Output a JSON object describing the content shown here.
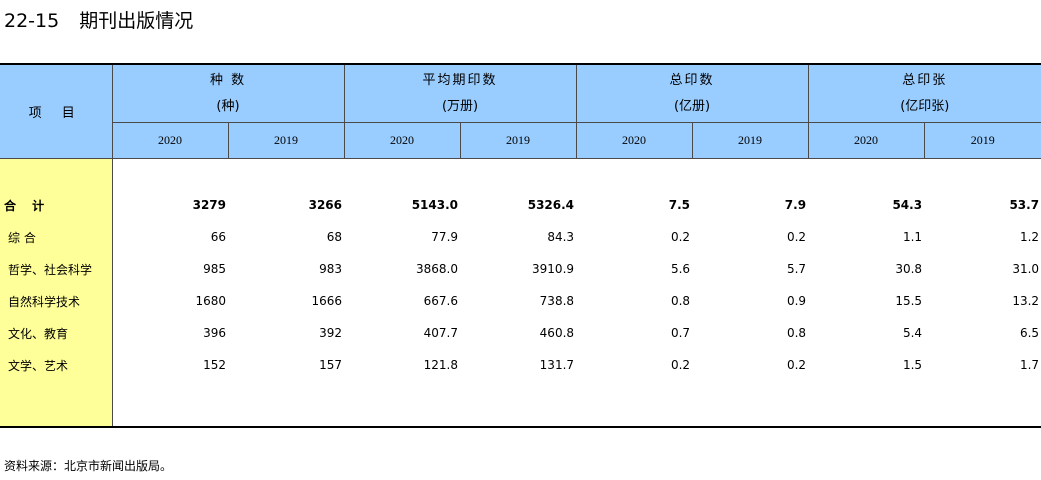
{
  "title": {
    "number": "22-15",
    "text": "期刊出版情况"
  },
  "table": {
    "item_header": "项 目",
    "groups": [
      {
        "name": "种 数",
        "unit": "(种)"
      },
      {
        "name": "平均期印数",
        "unit": "(万册)"
      },
      {
        "name": "总印数",
        "unit": "(亿册)"
      },
      {
        "name": "总印张",
        "unit": "(亿印张)"
      }
    ],
    "years": [
      "2020",
      "2019",
      "2020",
      "2019",
      "2020",
      "2019",
      "2020",
      "2019"
    ],
    "rows": [
      {
        "label": "合 计",
        "values": [
          "3279",
          "3266",
          "5143.0",
          "5326.4",
          "7.5",
          "7.9",
          "54.3",
          "53.7"
        ]
      },
      {
        "label": "综 合",
        "values": [
          "66",
          "68",
          "77.9",
          "84.3",
          "0.2",
          "0.2",
          "1.1",
          "1.2"
        ]
      },
      {
        "label": "哲学、社会科学",
        "values": [
          "985",
          "983",
          "3868.0",
          "3910.9",
          "5.6",
          "5.7",
          "30.8",
          "31.0"
        ]
      },
      {
        "label": "自然科学技术",
        "values": [
          "1680",
          "1666",
          "667.6",
          "738.8",
          "0.8",
          "0.9",
          "15.5",
          "13.2"
        ]
      },
      {
        "label": "文化、教育",
        "values": [
          "396",
          "392",
          "407.7",
          "460.8",
          "0.7",
          "0.8",
          "5.4",
          "6.5"
        ]
      },
      {
        "label": "文学、艺术",
        "values": [
          "152",
          "157",
          "121.8",
          "131.7",
          "0.2",
          "0.2",
          "1.5",
          "1.7"
        ]
      }
    ]
  },
  "source": "资料来源：北京市新闻出版局。",
  "colors": {
    "header_bg": "#99ccff",
    "label_col_bg": "#ffff99"
  }
}
